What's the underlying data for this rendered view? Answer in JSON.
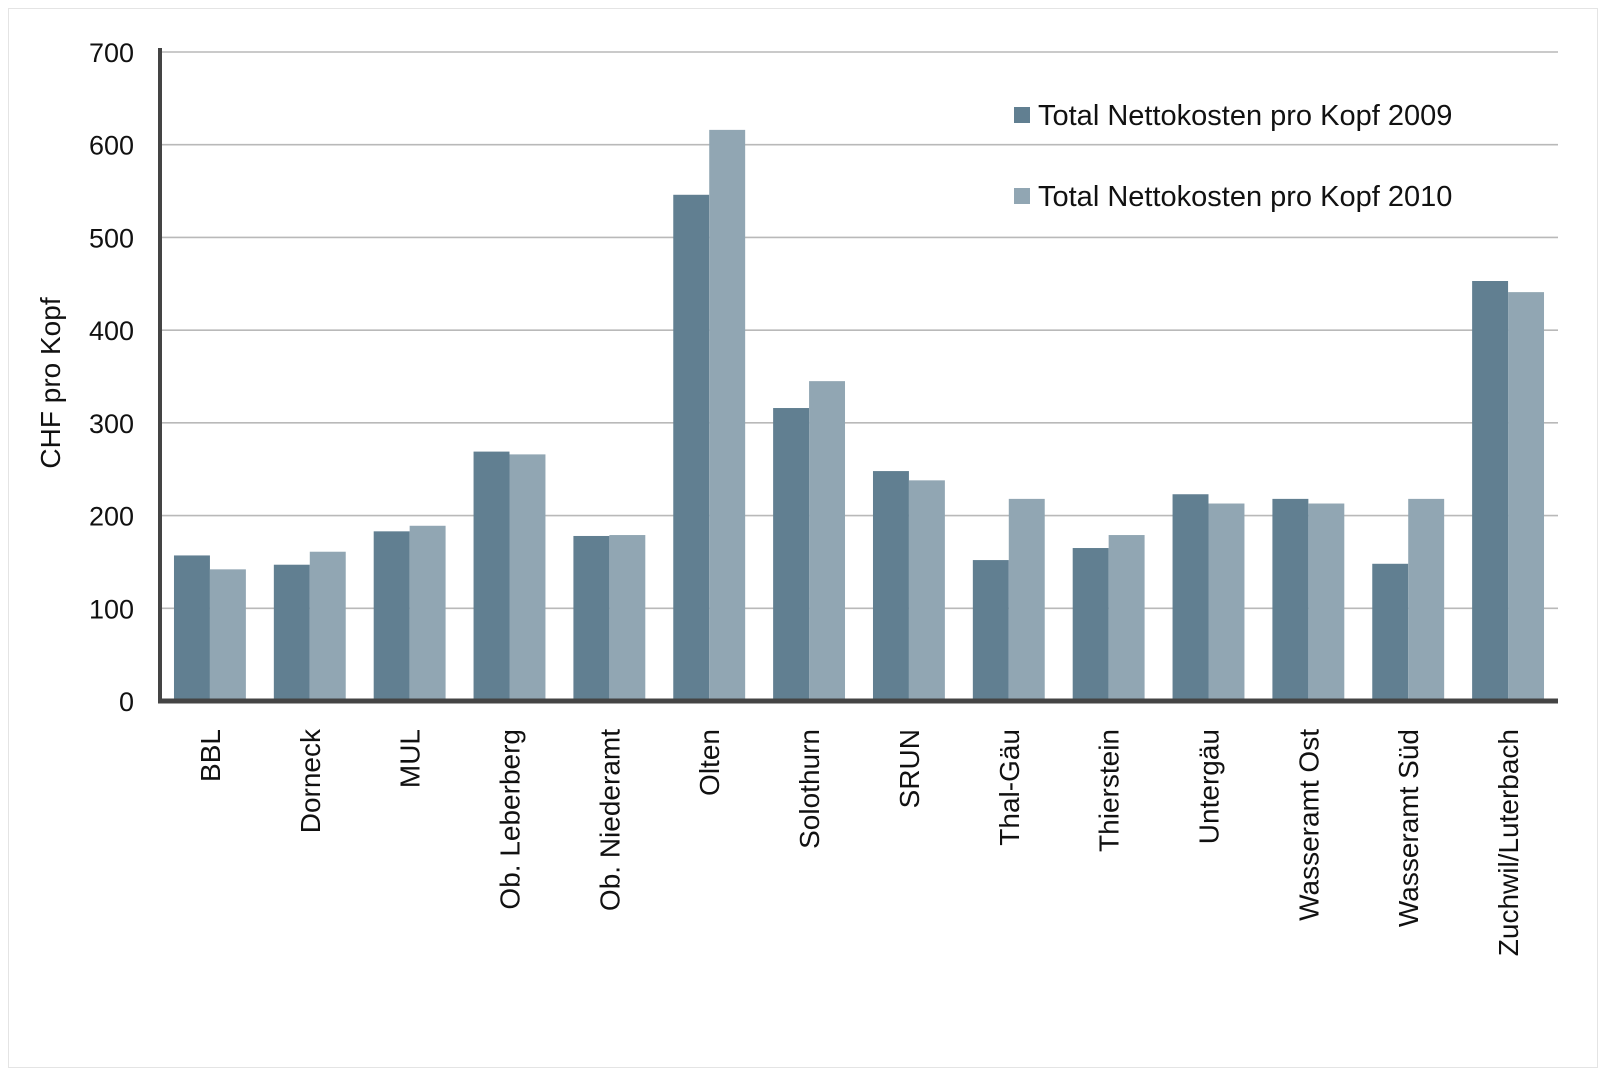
{
  "chart_data": {
    "type": "bar",
    "title": "",
    "xlabel": "",
    "ylabel": "CHF pro Kopf",
    "ylim": [
      0,
      700
    ],
    "yticks": [
      0,
      100,
      200,
      300,
      400,
      500,
      600,
      700
    ],
    "grid": true,
    "legend_position": "top-right",
    "categories": [
      "BBL",
      "Dorneck",
      "MUL",
      "Ob. Leberberg",
      "Ob. Niederamt",
      "Olten",
      "Solothurn",
      "SRUN",
      "Thal-Gäu",
      "Thierstein",
      "Untergäu",
      "Wasseramt Ost",
      "Wasseramt Süd",
      "Zuchwil/Luterbach"
    ],
    "series": [
      {
        "name": "Total Nettokosten pro Kopf 2009",
        "color": "#617f91",
        "values": [
          157,
          147,
          183,
          269,
          178,
          546,
          316,
          248,
          152,
          165,
          223,
          218,
          148,
          453
        ]
      },
      {
        "name": "Total Nettokosten pro Kopf 2010",
        "color": "#91a6b3",
        "values": [
          142,
          161,
          189,
          266,
          179,
          616,
          345,
          238,
          218,
          179,
          213,
          213,
          218,
          441
        ]
      }
    ]
  }
}
